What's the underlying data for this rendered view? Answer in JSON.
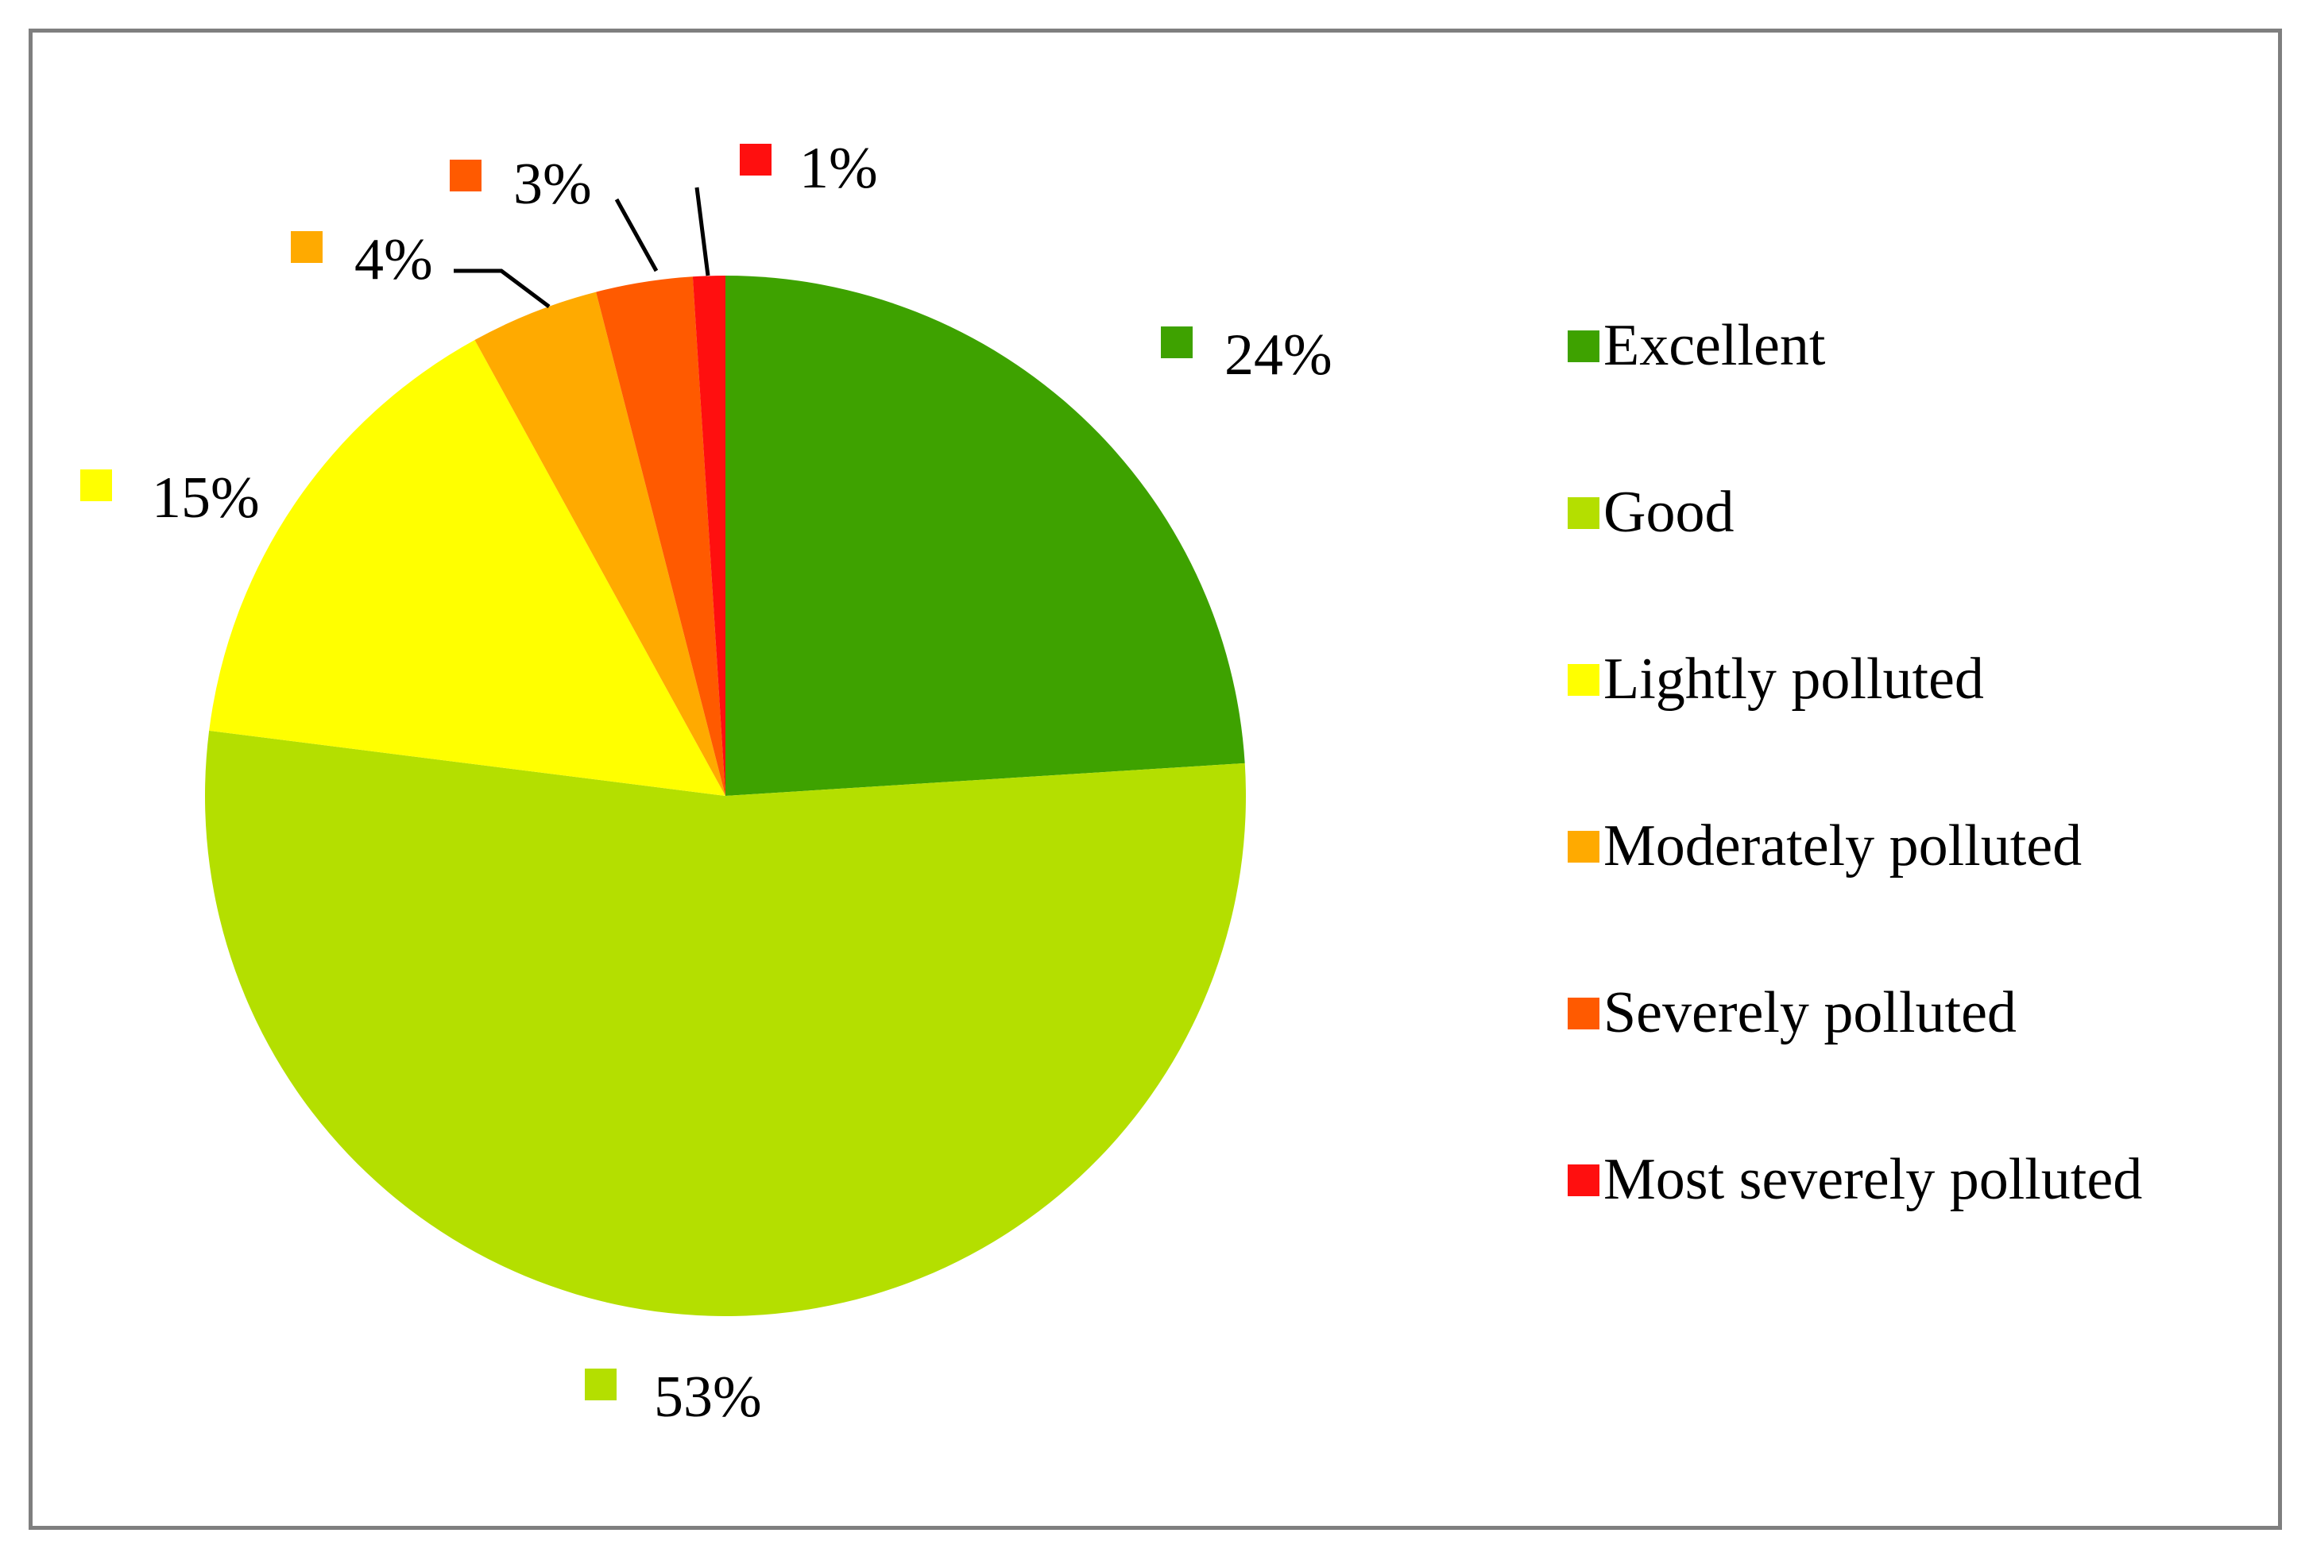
{
  "chart_data": {
    "type": "pie",
    "title": "",
    "categories": [
      "Excellent",
      "Good",
      "Lightly polluted",
      "Moderately polluted",
      "Severely polluted",
      "Most severely polluted"
    ],
    "values": [
      24,
      53,
      15,
      4,
      3,
      1
    ],
    "data_labels": [
      "24%",
      "53%",
      "15%",
      "4%",
      "3%",
      "1%"
    ],
    "colors": [
      "#3ea200",
      "#b4df00",
      "#ffff00",
      "#ffaa00",
      "#ff5a00",
      "#ff0f0f"
    ],
    "start_angle_deg": 0,
    "direction": "clockwise",
    "legend_position": "right"
  }
}
